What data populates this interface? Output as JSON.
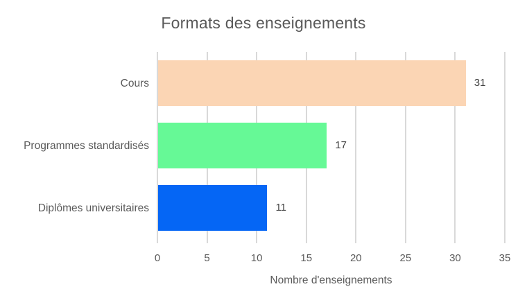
{
  "chart_data": {
    "type": "bar",
    "orientation": "horizontal",
    "title": "Formats des enseignements",
    "xlabel": "Nombre d'enseignements",
    "ylabel": "",
    "categories": [
      "Cours",
      "Programmes standardisés",
      "Diplômes universitaires"
    ],
    "values": [
      31,
      17,
      11
    ],
    "data_labels": [
      "31",
      "17",
      "11"
    ],
    "bar_colors": [
      "#fbd5b4",
      "#66f996",
      "#0566f5"
    ],
    "xticks": [
      "0",
      "5",
      "10",
      "15",
      "20",
      "25",
      "30",
      "35"
    ],
    "xlim": [
      0,
      35
    ],
    "grid": true,
    "legend": false
  },
  "colors": {
    "gridline": "#d9d9d9",
    "axis_text": "#595959",
    "title_text": "#595959",
    "value_text": "#404040",
    "background": "#ffffff"
  }
}
